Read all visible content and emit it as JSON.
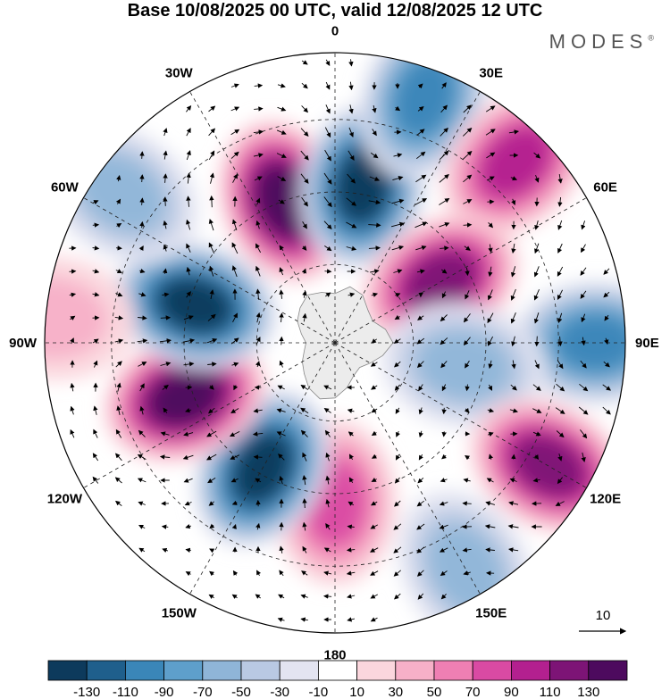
{
  "title": "Base 10/08/2025 00 UTC, valid 12/08/2025 12 UTC",
  "brand": {
    "name": "MODES",
    "mark": "®"
  },
  "map": {
    "projection": "south-polar-stereographic",
    "meridian_labels": [
      {
        "lon": 0,
        "text": "0"
      },
      {
        "lon": 30,
        "text": "30E"
      },
      {
        "lon": 60,
        "text": "60E"
      },
      {
        "lon": 90,
        "text": "90E"
      },
      {
        "lon": 120,
        "text": "120E"
      },
      {
        "lon": 150,
        "text": "150E"
      },
      {
        "lon": 180,
        "text": "180"
      },
      {
        "lon": -150,
        "text": "150W"
      },
      {
        "lon": -120,
        "text": "120W"
      },
      {
        "lon": -90,
        "text": "90W"
      },
      {
        "lon": -60,
        "text": "60W"
      },
      {
        "lon": -30,
        "text": "30W"
      }
    ],
    "anomaly_centers": [
      {
        "lon": -20,
        "lat_frac": 0.52,
        "value": 130,
        "sign": "positive"
      },
      {
        "lon": 10,
        "lat_frac": 0.55,
        "value": -130,
        "sign": "negative"
      },
      {
        "lon": 20,
        "lat_frac": 0.9,
        "value": -90,
        "sign": "negative"
      },
      {
        "lon": 45,
        "lat_frac": 0.88,
        "value": 90,
        "sign": "positive"
      },
      {
        "lon": 60,
        "lat_frac": 0.42,
        "value": 110,
        "sign": "positive"
      },
      {
        "lon": 90,
        "lat_frac": 0.9,
        "value": -90,
        "sign": "negative"
      },
      {
        "lon": 100,
        "lat_frac": 0.45,
        "value": -50,
        "sign": "negative"
      },
      {
        "lon": 120,
        "lat_frac": 0.85,
        "value": 110,
        "sign": "positive"
      },
      {
        "lon": 150,
        "lat_frac": 0.9,
        "value": -50,
        "sign": "negative"
      },
      {
        "lon": 180,
        "lat_frac": 0.55,
        "value": 70,
        "sign": "positive"
      },
      {
        "lon": -150,
        "lat_frac": 0.5,
        "value": -130,
        "sign": "negative"
      },
      {
        "lon": -110,
        "lat_frac": 0.55,
        "value": 130,
        "sign": "positive"
      },
      {
        "lon": -75,
        "lat_frac": 0.5,
        "value": -130,
        "sign": "negative"
      },
      {
        "lon": -55,
        "lat_frac": 0.9,
        "value": -50,
        "sign": "negative"
      },
      {
        "lon": -85,
        "lat_frac": 0.98,
        "value": 30,
        "sign": "positive"
      }
    ]
  },
  "vector_legend": {
    "value": "10"
  },
  "colorbar": {
    "labels": [
      "-130",
      "-110",
      "-90",
      "-70",
      "-50",
      "-30",
      "-10",
      "10",
      "30",
      "50",
      "70",
      "90",
      "110",
      "130"
    ],
    "colors": [
      "#0d3a5c",
      "#1f5f8c",
      "#3a86b8",
      "#5e9fcb",
      "#8fb5d8",
      "#b9c9e3",
      "#e3e4f1",
      "#ffffff",
      "#fbd6dd",
      "#f7b0c8",
      "#ef7fb3",
      "#d94aa3",
      "#b3208f",
      "#7d1476",
      "#4d0a5e"
    ]
  },
  "colors": {
    "ocean_bg": "#ffffff",
    "continent": "#ececec",
    "grid": "#222222"
  }
}
